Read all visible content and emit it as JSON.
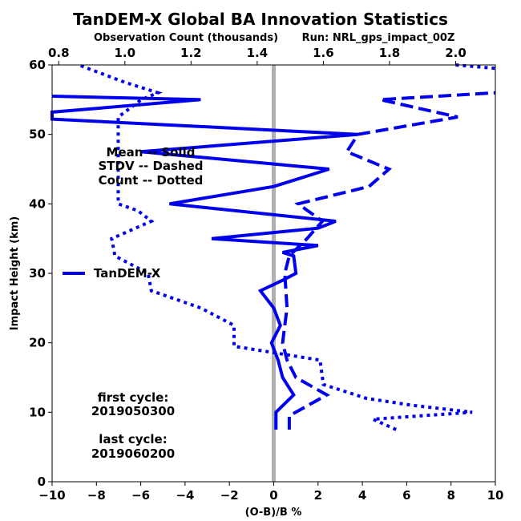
{
  "chart_data": {
    "type": "line",
    "title": "TanDEM-X Global BA Innovation Statistics",
    "top_xlabel": "Observation Count (thousands)",
    "run_label": "Run: NRL_gps_impact_00Z",
    "xlabel": "(O-B)/B %",
    "ylabel": "Impact Height (km)",
    "xlim": [
      -10,
      10
    ],
    "ylim": [
      0,
      60
    ],
    "top_xlim": [
      0.78,
      2.12
    ],
    "x_ticks": [
      "−10",
      "−8",
      "−6",
      "−4",
      "−2",
      "0",
      "2",
      "4",
      "6",
      "8",
      "10"
    ],
    "y_ticks": [
      "0",
      "10",
      "20",
      "30",
      "40",
      "50",
      "60"
    ],
    "top_ticks": [
      "0.8",
      "1.0",
      "1.2",
      "1.4",
      "1.6",
      "1.8",
      "2.0"
    ],
    "reference_line_x": 0,
    "legend": {
      "label": "TanDEM-X",
      "position": "center-left"
    },
    "style_note": [
      "Mean -- Solid",
      "STDV -- Dashed",
      "Count -- Dotted"
    ],
    "first_cycle_label": "first cycle:",
    "first_cycle": "2019050300",
    "last_cycle_label": "last cycle:",
    "last_cycle": "2019060200",
    "color": "#0000ee",
    "series": [
      {
        "name": "Mean",
        "style": "solid",
        "points": [
          [
            0.1,
            7.5
          ],
          [
            0.1,
            10
          ],
          [
            0.9,
            12.5
          ],
          [
            0.4,
            15
          ],
          [
            0.2,
            17.5
          ],
          [
            -0.1,
            20
          ],
          [
            0.3,
            22.5
          ],
          [
            0.0,
            25
          ],
          [
            -0.6,
            27.5
          ],
          [
            0.4,
            29
          ],
          [
            1.0,
            30
          ],
          [
            0.9,
            32.5
          ],
          [
            0.4,
            33
          ],
          [
            2.0,
            34
          ],
          [
            -2.8,
            35
          ],
          [
            2.0,
            36.5
          ],
          [
            2.8,
            37.5
          ],
          [
            -4.7,
            40
          ],
          [
            0.0,
            42.5
          ],
          [
            2.5,
            45
          ],
          [
            -6.0,
            47.5
          ],
          [
            3.8,
            50
          ],
          [
            -10,
            52.2
          ],
          [
            -10,
            53.2
          ],
          [
            -3.3,
            55
          ],
          [
            -10,
            55.5
          ]
        ]
      },
      {
        "name": "STDV",
        "style": "dashed",
        "points": [
          [
            0.7,
            7.5
          ],
          [
            0.7,
            9.5
          ],
          [
            2.4,
            12.5
          ],
          [
            1.0,
            15
          ],
          [
            0.6,
            17.5
          ],
          [
            0.4,
            20
          ],
          [
            0.5,
            22.5
          ],
          [
            0.6,
            25
          ],
          [
            0.5,
            30
          ],
          [
            0.7,
            32.5
          ],
          [
            1.5,
            35
          ],
          [
            2.2,
            37.5
          ],
          [
            1.1,
            40
          ],
          [
            4.3,
            42.5
          ],
          [
            5.2,
            45
          ],
          [
            3.3,
            47.5
          ],
          [
            3.8,
            50
          ],
          [
            8.3,
            52.5
          ],
          [
            4.8,
            55
          ],
          [
            10,
            56
          ]
        ]
      },
      {
        "name": "Count",
        "style": "dotted",
        "points": [
          [
            1.82,
            7.5
          ],
          [
            1.75,
            9.0
          ],
          [
            2.05,
            10
          ],
          [
            1.87,
            11.0
          ],
          [
            1.73,
            12.0
          ],
          [
            1.6,
            14.0
          ],
          [
            1.59,
            17.5
          ],
          [
            1.33,
            19.5
          ],
          [
            1.33,
            22.5
          ],
          [
            1.23,
            25
          ],
          [
            1.08,
            27.5
          ],
          [
            1.07,
            30
          ],
          [
            0.97,
            32.5
          ],
          [
            0.96,
            35
          ],
          [
            1.08,
            37.5
          ],
          [
            1.04,
            39.0
          ],
          [
            0.98,
            40
          ],
          [
            0.98,
            52.5
          ],
          [
            1.05,
            55
          ],
          [
            1.1,
            56
          ],
          [
            1.0,
            57.5
          ],
          [
            0.86,
            60
          ]
        ]
      },
      {
        "name": "Count (high)",
        "style": "dotted",
        "points": [
          [
            2.0,
            60
          ],
          [
            2.12,
            59.5
          ]
        ]
      }
    ]
  }
}
